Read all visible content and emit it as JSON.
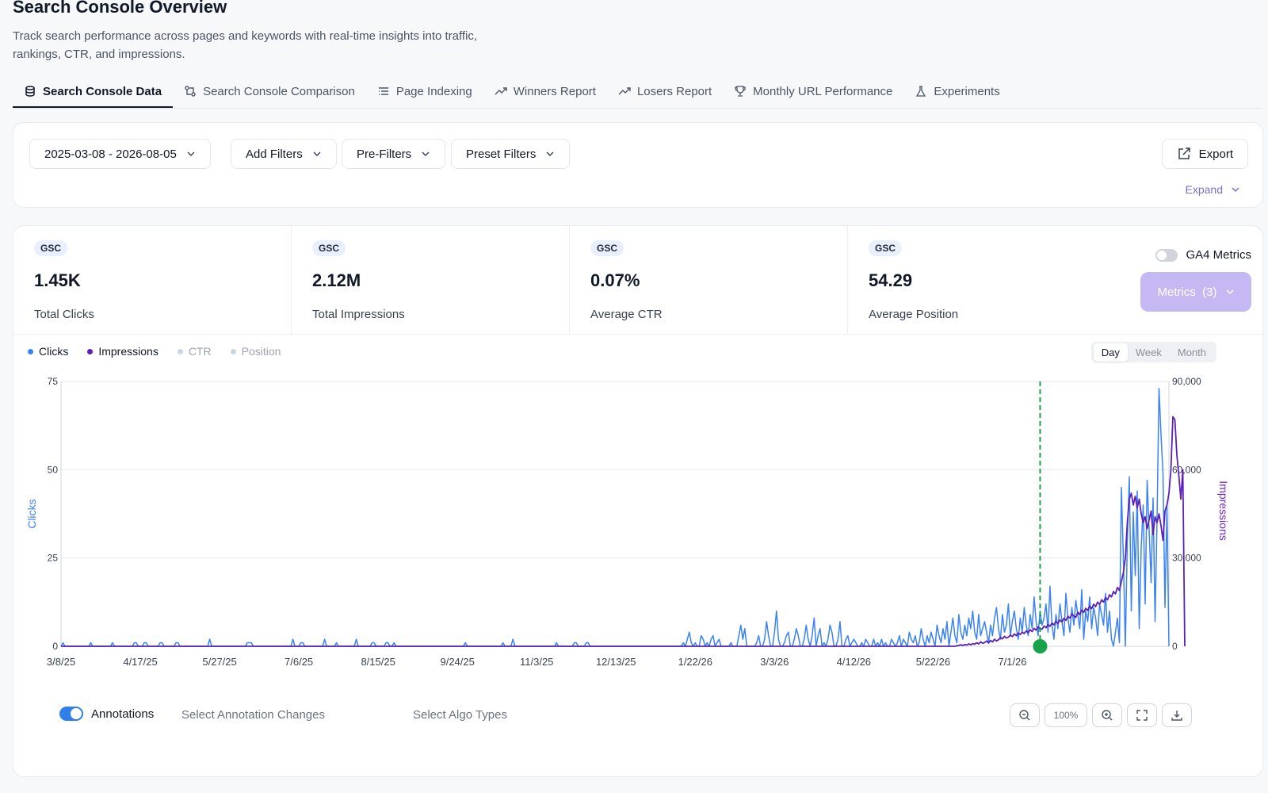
{
  "header": {
    "title": "Search Console Overview",
    "subtitle": "Track search performance across pages and keywords with real-time insights into traffic, rankings, CTR, and impressions."
  },
  "tabs": [
    {
      "label": "Search Console Data",
      "icon": "database-icon",
      "active": true
    },
    {
      "label": "Search Console Comparison",
      "icon": "compare-icon"
    },
    {
      "label": "Page Indexing",
      "icon": "list-icon"
    },
    {
      "label": "Winners Report",
      "icon": "trending-up-icon"
    },
    {
      "label": "Losers Report",
      "icon": "trending-icon"
    },
    {
      "label": "Monthly URL Performance",
      "icon": "trophy-icon"
    },
    {
      "label": "Experiments",
      "icon": "flask-icon"
    }
  ],
  "filters": {
    "date_range": "2025-03-08 - 2026-08-05",
    "add_filters": "Add Filters",
    "pre_filters": "Pre-Filters",
    "preset_filters": "Preset Filters",
    "export": "Export",
    "expand": "Expand"
  },
  "metrics": [
    {
      "badge": "GSC",
      "value": "1.45K",
      "label": "Total Clicks"
    },
    {
      "badge": "GSC",
      "value": "2.12M",
      "label": "Total Impressions"
    },
    {
      "badge": "GSC",
      "value": "0.07%",
      "label": "Average CTR"
    },
    {
      "badge": "GSC",
      "value": "54.29",
      "label": "Average Position"
    }
  ],
  "ga4_label": "GA4 Metrics",
  "metrics_button": "Metrics  (3)",
  "legend": [
    {
      "label": "Clicks",
      "color": "#3b82f6",
      "active": true
    },
    {
      "label": "Impressions",
      "color": "#5b21b6",
      "active": true
    },
    {
      "label": "CTR",
      "color": "#cbd5e1",
      "active": false
    },
    {
      "label": "Position",
      "color": "#cbd5e1",
      "active": false
    }
  ],
  "granularity": {
    "options": [
      "Day",
      "Week",
      "Month"
    ],
    "selected": "Day"
  },
  "chart_data": {
    "type": "line",
    "x_ticks": [
      "3/8/25",
      "4/17/25",
      "5/27/25",
      "7/6/25",
      "8/15/25",
      "9/24/25",
      "11/3/25",
      "12/13/25",
      "1/22/26",
      "3/3/26",
      "4/12/26",
      "5/22/26",
      "7/1/26"
    ],
    "y_left": {
      "label": "Clicks",
      "ticks": [
        0,
        25,
        50,
        75
      ],
      "range": [
        0,
        75
      ]
    },
    "y_right": {
      "label": "Impressions",
      "ticks": [
        "0",
        "30,000",
        "60,000",
        "90,000"
      ],
      "range": [
        0,
        90000
      ]
    },
    "series": [
      {
        "name": "Clicks",
        "axis": "left",
        "color": "#3b82f6",
        "values": [
          0,
          1,
          0,
          0,
          0,
          0,
          0,
          0,
          0,
          0,
          0,
          0,
          0,
          0,
          0,
          1,
          0,
          0,
          0,
          0,
          0,
          0,
          0,
          0,
          0,
          0,
          1,
          0,
          0,
          0,
          0,
          0,
          0,
          0,
          0,
          0,
          0,
          1,
          1,
          0,
          0,
          0,
          1,
          1,
          0,
          0,
          0,
          0,
          0,
          0,
          1,
          1,
          0,
          0,
          0,
          0,
          0,
          0,
          1,
          1,
          0,
          0,
          0,
          0,
          0,
          0,
          0,
          0,
          0,
          0,
          0,
          0,
          0,
          0,
          0,
          2,
          0,
          0,
          0,
          0,
          0,
          0,
          0,
          0,
          0,
          0,
          0,
          0,
          0,
          0,
          0,
          0,
          0,
          0,
          1,
          1,
          1,
          0,
          0,
          0,
          0,
          0,
          0,
          0,
          0,
          0,
          0,
          0,
          0,
          0,
          0,
          0,
          0,
          0,
          0,
          0,
          0,
          2,
          0,
          0,
          0,
          1,
          1,
          0,
          0,
          0,
          0,
          0,
          0,
          0,
          0,
          0,
          0,
          2,
          0,
          0,
          0,
          0,
          0,
          1,
          0,
          0,
          0,
          0,
          0,
          0,
          0,
          0,
          0,
          2,
          0,
          0,
          0,
          0,
          0,
          0,
          0,
          1,
          1,
          0,
          0,
          0,
          0,
          0,
          1,
          1,
          0,
          0,
          1,
          0,
          0,
          0,
          0,
          0,
          0,
          0,
          0,
          0,
          0,
          0,
          0,
          0,
          0,
          0,
          0,
          0,
          0,
          0,
          0,
          0,
          0,
          0,
          0,
          0,
          0,
          0,
          0,
          0,
          0,
          0,
          0,
          0,
          0,
          0,
          1,
          0,
          0,
          0,
          0,
          0,
          0,
          0,
          0,
          0,
          0,
          0,
          0,
          0,
          0,
          0,
          0,
          0,
          0,
          1,
          0,
          0,
          0,
          0,
          2,
          0,
          0,
          0,
          0,
          0,
          0,
          0,
          0,
          0,
          0,
          0,
          0,
          0,
          0,
          0,
          0,
          0,
          0,
          0,
          0,
          0,
          1,
          0,
          0,
          0,
          0,
          0,
          0,
          0,
          0,
          1,
          1,
          0,
          0,
          0,
          0,
          1,
          1,
          0,
          0,
          0,
          0,
          0,
          0,
          0,
          0,
          0,
          0,
          0,
          0,
          0,
          0,
          0,
          0,
          0,
          0,
          0,
          0,
          0,
          0,
          0,
          0,
          0,
          0,
          0,
          0,
          0,
          0,
          0,
          0,
          0,
          0,
          0,
          0,
          0,
          0,
          0,
          0,
          0,
          0,
          0,
          0,
          0,
          0,
          0,
          1,
          0,
          2,
          4,
          1,
          0,
          1,
          0,
          0,
          3,
          2,
          0,
          1,
          0,
          2,
          3,
          0,
          1,
          2,
          0,
          0,
          0,
          0,
          0,
          1,
          0,
          0,
          0,
          3,
          6,
          2,
          5,
          0,
          0,
          0,
          0,
          0,
          1,
          3,
          0,
          0,
          2,
          7,
          3,
          0,
          0,
          4,
          10,
          2,
          0,
          0,
          1,
          3,
          4,
          0,
          0,
          2,
          5,
          3,
          0,
          0,
          2,
          6,
          2,
          0,
          3,
          8,
          0,
          3,
          5,
          0,
          1,
          0,
          2,
          6,
          4,
          0,
          0,
          2,
          7,
          0,
          0,
          2,
          3,
          0,
          1,
          2,
          1,
          0,
          0,
          1,
          0,
          2,
          1,
          0,
          0,
          2,
          0,
          1,
          0,
          2,
          0,
          1,
          0,
          0,
          2,
          1,
          0,
          1,
          3,
          0,
          2,
          1,
          0,
          4,
          2,
          1,
          3,
          0,
          1,
          5,
          2,
          0,
          3,
          1,
          4,
          2,
          0,
          6,
          3,
          1,
          5,
          2,
          7,
          0,
          4,
          8,
          3,
          1,
          9,
          4,
          2,
          6,
          3,
          8,
          5,
          10,
          4,
          2,
          9,
          3,
          5,
          7,
          4,
          1,
          6,
          3,
          8,
          11,
          5,
          2,
          9,
          4,
          6,
          12,
          3,
          7,
          10,
          5,
          2,
          8,
          4,
          11,
          6,
          3,
          9,
          5,
          14,
          7,
          3,
          10,
          6,
          8,
          12,
          4,
          17,
          6,
          2,
          9,
          5,
          12,
          7,
          3,
          15,
          8,
          4,
          11,
          6,
          13,
          9,
          5,
          16,
          2,
          10,
          7,
          14,
          5,
          11,
          8,
          3,
          12,
          9,
          6,
          15,
          4,
          10,
          2,
          0,
          4,
          8,
          1,
          45,
          25,
          0,
          30,
          48,
          10,
          38,
          20,
          44,
          5,
          28,
          40,
          12,
          47,
          33,
          18,
          42,
          7,
          36,
          73,
          60,
          49,
          11,
          40,
          0
        ]
      },
      {
        "name": "Impressions",
        "axis": "right",
        "color": "#5b21b6",
        "values": [
          0,
          0,
          0,
          0,
          0,
          0,
          0,
          0,
          0,
          0,
          0,
          0,
          0,
          0,
          0,
          0,
          0,
          0,
          0,
          0,
          0,
          0,
          0,
          0,
          0,
          0,
          0,
          0,
          0,
          0,
          0,
          0,
          0,
          0,
          0,
          0,
          0,
          0,
          0,
          0,
          0,
          0,
          0,
          0,
          0,
          0,
          0,
          0,
          0,
          0,
          0,
          0,
          0,
          0,
          0,
          0,
          0,
          0,
          0,
          0,
          0,
          0,
          0,
          0,
          0,
          0,
          0,
          0,
          0,
          0,
          0,
          0,
          0,
          0,
          0,
          0,
          0,
          0,
          0,
          0,
          0,
          0,
          0,
          0,
          0,
          0,
          0,
          0,
          0,
          0,
          0,
          0,
          0,
          0,
          0,
          0,
          0,
          0,
          0,
          0,
          0,
          0,
          0,
          0,
          0,
          0,
          0,
          0,
          0,
          0,
          0,
          0,
          0,
          0,
          0,
          0,
          0,
          0,
          0,
          0,
          0,
          0,
          0,
          0,
          0,
          0,
          0,
          0,
          0,
          0,
          0,
          0,
          0,
          0,
          0,
          0,
          0,
          0,
          0,
          0,
          0,
          0,
          0,
          0,
          0,
          0,
          0,
          0,
          0,
          0,
          0,
          0,
          0,
          0,
          0,
          0,
          0,
          0,
          0,
          0,
          0,
          0,
          0,
          0,
          0,
          0,
          0,
          0,
          0,
          0,
          0,
          0,
          0,
          0,
          0,
          0,
          0,
          0,
          0,
          0,
          0,
          0,
          0,
          0,
          0,
          0,
          0,
          0,
          0,
          0,
          0,
          0,
          0,
          0,
          0,
          0,
          0,
          0,
          0,
          0,
          0,
          0,
          0,
          0,
          0,
          0,
          0,
          0,
          0,
          0,
          0,
          0,
          0,
          0,
          0,
          0,
          0,
          0,
          0,
          0,
          0,
          0,
          0,
          0,
          0,
          0,
          0,
          0,
          0,
          0,
          0,
          0,
          0,
          0,
          0,
          0,
          0,
          0,
          0,
          0,
          0,
          0,
          0,
          0,
          0,
          0,
          0,
          0,
          0,
          0,
          0,
          0,
          0,
          0,
          0,
          0,
          0,
          0,
          0,
          0,
          0,
          0,
          0,
          0,
          0,
          0,
          0,
          0,
          0,
          0,
          0,
          0,
          0,
          0,
          0,
          0,
          0,
          0,
          0,
          0,
          0,
          0,
          0,
          0,
          0,
          0,
          0,
          0,
          0,
          0,
          0,
          0,
          0,
          0,
          0,
          0,
          0,
          0,
          0,
          0,
          0,
          0,
          0,
          0,
          0,
          0,
          0,
          0,
          0,
          0,
          0,
          0,
          0,
          0,
          0,
          0,
          0,
          0,
          0,
          0,
          0,
          0,
          0,
          0,
          0,
          0,
          0,
          0,
          0,
          0,
          0,
          0,
          0,
          0,
          0,
          0,
          0,
          0,
          0,
          0,
          0,
          0,
          0,
          0,
          0,
          0,
          0,
          0,
          0,
          0,
          0,
          0,
          0,
          0,
          0,
          0,
          0,
          0,
          0,
          0,
          0,
          0,
          0,
          0,
          0,
          0,
          0,
          0,
          0,
          0,
          0,
          0,
          0,
          0,
          0,
          0,
          0,
          0,
          0,
          0,
          0,
          0,
          0,
          0,
          0,
          0,
          0,
          0,
          0,
          0,
          0,
          0,
          0,
          0,
          0,
          0,
          0,
          0,
          0,
          0,
          0,
          0,
          0,
          0,
          0,
          0,
          0,
          0,
          0,
          0,
          0,
          0,
          0,
          0,
          0,
          0,
          0,
          0,
          0,
          0,
          0,
          0,
          0,
          0,
          0,
          0,
          0,
          0,
          0,
          0,
          0,
          0,
          0,
          0,
          0,
          0,
          0,
          0,
          0,
          0,
          0,
          0,
          0,
          0,
          0,
          0,
          0,
          0,
          0,
          0,
          0,
          0,
          200,
          300,
          500,
          300,
          600,
          400,
          800,
          500,
          900,
          700,
          1200,
          800,
          1500,
          1000,
          1300,
          1800,
          1100,
          2000,
          1500,
          2400,
          1800,
          2200,
          3000,
          2500,
          3400,
          2800,
          3100,
          3800,
          3300,
          4200,
          3600,
          4500,
          4000,
          4800,
          4300,
          5200,
          4600,
          5600,
          5000,
          6100,
          5500,
          6600,
          6000,
          5800,
          6900,
          6300,
          7400,
          6800,
          7900,
          7300,
          8400,
          7800,
          8900,
          8300,
          9500,
          8800,
          10200,
          9600,
          11000,
          10300,
          9800,
          11600,
          10800,
          12300,
          11500,
          12900,
          12200,
          13600,
          12800,
          14300,
          13500,
          15000,
          14200,
          15800,
          15000,
          16600,
          15800,
          17500,
          16800,
          18600,
          17800,
          20000,
          19000,
          22000,
          25000,
          30000,
          42000,
          50000,
          52000,
          48000,
          51000,
          47000,
          50000,
          45000,
          42000,
          44000,
          40000,
          43000,
          46000,
          38000,
          44000,
          42000,
          45000,
          41000,
          36000,
          46000,
          48000,
          52000,
          60000,
          78000,
          77000,
          65000,
          58000,
          50000,
          60000,
          0
        ]
      }
    ],
    "marker_date": "7/15/26",
    "grid": true
  },
  "annotations": {
    "toggle_label": "Annotations",
    "changes_select": "Select Annotation Changes",
    "algo_select": "Select Algo Types"
  },
  "zoom": {
    "level": "100%"
  }
}
